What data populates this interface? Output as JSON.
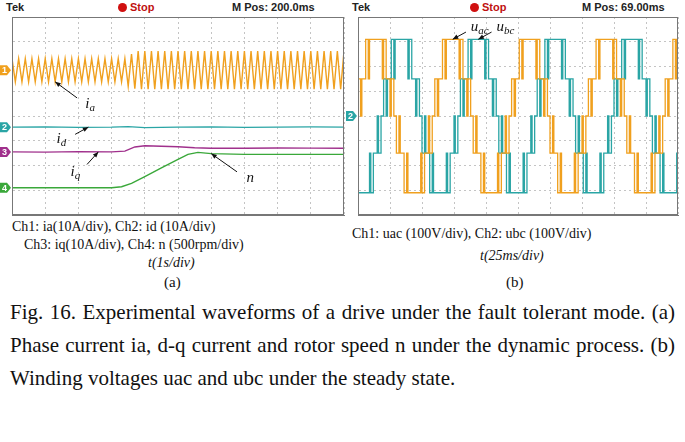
{
  "chart_data": [
    {
      "type": "line",
      "panel_label": "(a)",
      "header": {
        "brand": "Tek",
        "state": "Stop",
        "mpos": "M Pos: 200.0ms"
      },
      "channel_labels": [
        "Ch1: ia(10A/div),  Ch2: id (10A/div)",
        "Ch3: iq(10A/div),  Ch4: n (500rpm/div)"
      ],
      "x_label": "t(1s/div)",
      "xlim": [
        0,
        10
      ],
      "xticks": [
        0,
        1,
        2,
        3,
        4,
        5,
        6,
        7,
        8,
        9,
        10
      ],
      "ylim": [
        -4,
        4
      ],
      "yticks": [
        -4,
        -3,
        -2,
        -1,
        0,
        1,
        2,
        3,
        4
      ],
      "grid": true,
      "tick_labels": false,
      "series": [
        {
          "name": "ia",
          "color": "#f0a01e",
          "line_style": "solid",
          "x": [
            0,
            0.1,
            0.2,
            0.3,
            0.4,
            0.5,
            0.6,
            0.7,
            0.8,
            0.9,
            1,
            1.1,
            1.2,
            1.3,
            1.4,
            1.5,
            1.6,
            1.7,
            1.8,
            1.9,
            2,
            2.1,
            2.2,
            2.3,
            2.4,
            2.5,
            2.6,
            2.7,
            2.8,
            2.9,
            3,
            3.1,
            3.2,
            3.3,
            3.4,
            3.5,
            3.6,
            3.7,
            3.8,
            3.9,
            4,
            4.1,
            4.2,
            4.3,
            4.4,
            4.5,
            4.6,
            4.7,
            4.8,
            4.9,
            5,
            5.1,
            5.2,
            5.3,
            5.4,
            5.5,
            5.6,
            5.7,
            5.8,
            5.9,
            6,
            6.1,
            6.2,
            6.3,
            6.4,
            6.5,
            6.6,
            6.7,
            6.8,
            6.9,
            7,
            7.1,
            7.2,
            7.3,
            7.4,
            7.5,
            7.6,
            7.7,
            7.8,
            7.9,
            8,
            8.1,
            8.2,
            8.3,
            8.4,
            8.5,
            8.6,
            8.7,
            8.8,
            8.9,
            9,
            9.1,
            9.2,
            9.3,
            9.4,
            9.5,
            9.6,
            9.7,
            9.8,
            9.9,
            10
          ],
          "values": [
            2.32,
            1.38,
            2.32,
            1.38,
            2.32,
            1.38,
            2.32,
            1.38,
            2.32,
            1.38,
            2.32,
            1.38,
            2.32,
            1.38,
            2.32,
            1.38,
            2.32,
            1.38,
            2.32,
            1.38,
            2.32,
            1.38,
            2.32,
            1.38,
            2.32,
            1.38,
            2.32,
            1.38,
            2.32,
            1.38,
            2.32,
            1.38,
            2.32,
            1.38,
            2.32,
            1.2,
            2.5,
            1.1,
            2.62,
            1.08,
            2.62,
            1.08,
            2.62,
            1.08,
            2.62,
            1.08,
            2.62,
            1.08,
            2.62,
            1.08,
            2.62,
            1.08,
            2.62,
            1.08,
            2.62,
            1.08,
            2.62,
            1.08,
            2.62,
            1.08,
            2.62,
            1.08,
            2.62,
            1.08,
            2.62,
            1.08,
            2.62,
            1.08,
            2.62,
            1.08,
            2.62,
            1.08,
            2.62,
            1.08,
            2.62,
            1.08,
            2.62,
            1.08,
            2.62,
            1.08,
            2.62,
            1.08,
            2.62,
            1.08,
            2.62,
            1.08,
            2.62,
            1.08,
            2.62,
            1.08,
            2.62,
            1.08,
            2.62,
            1.08,
            2.62,
            1.08,
            2.62,
            1.08,
            2.62,
            1.08,
            2.62
          ]
        },
        {
          "name": "id",
          "color": "#2aa5a5",
          "line_style": "solid",
          "x": [
            0,
            1,
            2,
            3,
            3.5,
            4,
            5,
            6,
            7,
            8,
            9,
            10
          ],
          "values": [
            -0.45,
            -0.44,
            -0.46,
            -0.45,
            -0.43,
            -0.47,
            -0.45,
            -0.44,
            -0.46,
            -0.45,
            -0.44,
            -0.45
          ]
        },
        {
          "name": "iq",
          "color": "#a0308c",
          "line_style": "solid",
          "x": [
            0,
            1,
            2,
            3,
            3.4,
            3.7,
            4,
            4.5,
            5,
            5.5,
            6,
            7,
            8,
            9,
            10
          ],
          "values": [
            -1.45,
            -1.46,
            -1.44,
            -1.45,
            -1.42,
            -1.25,
            -1.2,
            -1.22,
            -1.24,
            -1.28,
            -1.3,
            -1.3,
            -1.29,
            -1.3,
            -1.3
          ]
        },
        {
          "name": "n",
          "color": "#3aa83a",
          "line_style": "solid",
          "x": [
            0,
            1,
            2,
            3,
            3.3,
            3.6,
            4,
            4.5,
            5,
            5.3,
            5.6,
            6,
            7,
            8,
            9,
            10
          ],
          "values": [
            -2.9,
            -2.9,
            -2.9,
            -2.9,
            -2.86,
            -2.72,
            -2.45,
            -2.1,
            -1.75,
            -1.55,
            -1.47,
            -1.52,
            -1.55,
            -1.55,
            -1.55,
            -1.55
          ]
        }
      ],
      "channel_markers": [
        {
          "label": "1",
          "value": 1.85,
          "color": "#f0a01e"
        },
        {
          "label": "2",
          "value": -0.45,
          "color": "#2aa5a5"
        },
        {
          "label": "3",
          "value": -1.45,
          "color": "#a0308c"
        },
        {
          "label": "4",
          "value": -2.9,
          "color": "#3aa83a"
        }
      ],
      "annotations": [
        {
          "text": "ia",
          "x": 1.3,
          "y": 1.38
        },
        {
          "text": "id",
          "x": 2.3,
          "y": -0.45
        },
        {
          "text": "iq",
          "x": 2.6,
          "y": -1.45
        },
        {
          "text": "n",
          "x": 6.0,
          "y": -1.52
        }
      ]
    },
    {
      "type": "line",
      "panel_label": "(b)",
      "header": {
        "brand": "Tek",
        "state": "Stop",
        "mpos": "M Pos: 69.00ms"
      },
      "channel_labels": [
        "Ch1: uac (100V/div),  Ch2: ubc (100V/div)"
      ],
      "x_label": "t(25ms/div)",
      "xlim": [
        0,
        250
      ],
      "xticks": [
        0,
        25,
        50,
        75,
        100,
        125,
        150,
        175,
        200,
        225,
        250
      ],
      "ylim": [
        -4,
        4
      ],
      "yticks": [
        -4,
        -3,
        -2,
        -1,
        0,
        1,
        2,
        3,
        4
      ],
      "grid": true,
      "tick_labels": false,
      "series": [
        {
          "name": "uac",
          "color": "#f0a01e",
          "line_style": "stepped",
          "x": [
            0,
            2,
            3,
            6,
            8,
            9,
            19,
            20,
            22,
            25,
            26,
            28,
            30,
            32,
            33,
            36,
            38,
            39,
            49,
            50,
            52,
            55,
            56,
            58,
            60,
            62,
            63,
            66,
            68,
            69,
            79,
            80,
            82,
            85,
            86,
            88,
            90,
            92,
            93,
            96,
            98,
            99,
            109,
            110,
            112,
            115,
            116,
            118,
            120,
            122,
            123,
            126,
            128,
            129,
            139,
            140,
            142,
            145,
            146,
            148,
            150,
            152,
            153,
            156,
            158,
            159,
            169,
            170,
            172,
            175,
            176,
            178,
            180,
            182,
            183,
            186,
            188,
            189,
            199,
            200,
            202,
            205,
            206,
            208,
            210,
            212,
            213,
            216,
            218,
            219,
            229,
            230,
            232,
            235,
            236,
            238,
            240,
            242,
            243,
            246,
            248,
            249,
            250
          ],
          "values": [
            1.5,
            0,
            1.5,
            3.1,
            1.5,
            3.1,
            1.5,
            3.1,
            1.5,
            0,
            1.5,
            0,
            -1.5,
            0,
            -1.5,
            -3.1,
            -1.5,
            -3.1,
            -1.5,
            -3.1,
            -1.5,
            0,
            -1.5,
            0,
            1.5,
            0,
            1.5,
            3.1,
            1.5,
            3.1,
            1.5,
            3.1,
            1.5,
            0,
            1.5,
            0,
            -1.5,
            0,
            -1.5,
            -3.1,
            -1.5,
            -3.1,
            -1.5,
            -3.1,
            -1.5,
            0,
            -1.5,
            0,
            1.5,
            0,
            1.5,
            3.1,
            1.5,
            3.1,
            1.5,
            3.1,
            1.5,
            0,
            1.5,
            0,
            -1.5,
            0,
            -1.5,
            -3.1,
            -1.5,
            -3.1,
            -1.5,
            -3.1,
            -1.5,
            0,
            -1.5,
            0,
            1.5,
            0,
            1.5,
            3.1,
            1.5,
            3.1,
            1.5,
            3.1,
            1.5,
            0,
            1.5,
            0,
            -1.5,
            0,
            -1.5,
            -3.1,
            -1.5,
            -3.1,
            -1.5,
            -3.1,
            -1.5,
            0,
            -1.5,
            0,
            1.5,
            0,
            1.5,
            3.1,
            1.5,
            3.1,
            3.1
          ]
        },
        {
          "name": "ubc",
          "color": "#2aa5a5",
          "line_style": "stepped",
          "x": [
            0,
            9,
            10,
            12,
            15,
            16,
            18,
            20,
            22,
            23,
            26,
            28,
            29,
            39,
            40,
            42,
            45,
            46,
            48,
            50,
            52,
            53,
            56,
            58,
            59,
            69,
            70,
            72,
            75,
            76,
            78,
            80,
            82,
            83,
            86,
            88,
            89,
            99,
            100,
            102,
            105,
            106,
            108,
            110,
            112,
            113,
            116,
            118,
            119,
            129,
            130,
            132,
            135,
            136,
            138,
            140,
            142,
            143,
            146,
            148,
            149,
            159,
            160,
            162,
            165,
            166,
            168,
            170,
            172,
            173,
            176,
            178,
            179,
            189,
            190,
            192,
            195,
            196,
            198,
            200,
            202,
            203,
            206,
            208,
            209,
            219,
            220,
            222,
            225,
            226,
            228,
            230,
            232,
            233,
            236,
            238,
            239,
            249,
            250
          ],
          "values": [
            -3.1,
            -1.5,
            -3.1,
            -1.5,
            0,
            -1.5,
            0,
            1.5,
            0,
            1.5,
            3.1,
            1.5,
            3.1,
            1.5,
            3.1,
            1.5,
            0,
            1.5,
            0,
            -1.5,
            0,
            -1.5,
            -3.1,
            -1.5,
            -3.1,
            -1.5,
            -3.1,
            -1.5,
            0,
            -1.5,
            0,
            1.5,
            0,
            1.5,
            3.1,
            1.5,
            3.1,
            1.5,
            3.1,
            1.5,
            0,
            1.5,
            0,
            -1.5,
            0,
            -1.5,
            -3.1,
            -1.5,
            -3.1,
            -1.5,
            -3.1,
            -1.5,
            0,
            -1.5,
            0,
            1.5,
            0,
            1.5,
            3.1,
            1.5,
            3.1,
            1.5,
            3.1,
            1.5,
            0,
            1.5,
            0,
            -1.5,
            0,
            -1.5,
            -3.1,
            -1.5,
            -3.1,
            -1.5,
            -3.1,
            -1.5,
            0,
            -1.5,
            0,
            1.5,
            0,
            1.5,
            3.1,
            1.5,
            3.1,
            1.5,
            3.1,
            1.5,
            0,
            1.5,
            0,
            -1.5,
            0,
            -1.5,
            -3.1,
            -1.5,
            -3.1,
            -1.5,
            -1.5
          ]
        }
      ],
      "channel_markers": [
        {
          "label": "2",
          "value": 0,
          "color": "#2aa5a5"
        }
      ],
      "annotations": [
        {
          "text": "uac",
          "x": 74,
          "y": 3.1
        },
        {
          "text": "ubc",
          "x": 94,
          "y": 3.1
        }
      ]
    }
  ],
  "caption": "Fig. 16. Experimental waveforms of a drive under the fault tolerant mode. (a) Phase current ia, d-q current and rotor speed n under the dynamic process. (b) Winding voltages uac and ubc under the steady state."
}
